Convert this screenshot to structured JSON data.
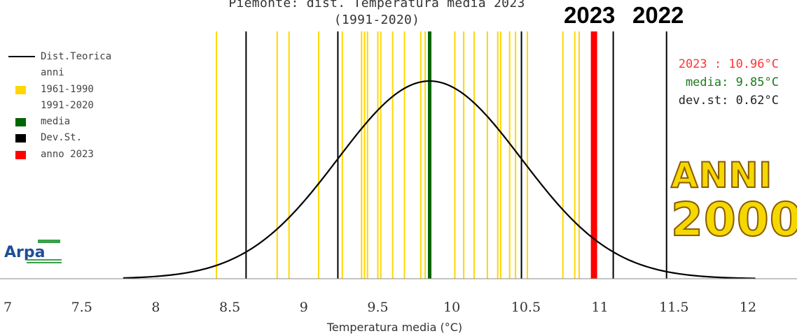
{
  "title": {
    "line1": "Piemonte: dist. Temperatura media 2023",
    "line2": "(1991-2020)"
  },
  "year_badges": [
    {
      "label": "2023",
      "color": "#ff0000"
    },
    {
      "label": "2022",
      "color": "#808080"
    }
  ],
  "legend": [
    {
      "label": "Dist.Teorica",
      "kind": "line",
      "color": "#000000"
    },
    {
      "label": "anni",
      "kind": "text"
    },
    {
      "label": "1961-1990",
      "kind": "swatch",
      "color": "#ffd700"
    },
    {
      "label": "1991-2020",
      "kind": "text"
    },
    {
      "label": "media",
      "kind": "swatch",
      "color": "#006400"
    },
    {
      "label": "Dev.St.",
      "kind": "swatch",
      "color": "#000000"
    },
    {
      "label": "anno 2023",
      "kind": "swatch",
      "color": "#ff0000"
    }
  ],
  "stats": {
    "year_value": "2023 : 10.96°C",
    "mean": "media: 9.85°C",
    "std": "dev.st: 0.62°C",
    "colors": {
      "year": "#ff3333",
      "mean": "#1a7a1a",
      "std": "#222222"
    }
  },
  "overlay": {
    "line1": "ANNI",
    "line2": "2000"
  },
  "logo": {
    "text": "Arpa"
  },
  "chart_data": {
    "type": "line",
    "xlabel": "Temperatura media (°C)",
    "ylabel": "",
    "xlim": [
      7,
      12.2
    ],
    "x_ticks": [
      "7",
      "7.5",
      "8",
      "8.5",
      "9",
      "9.5",
      "10",
      "10.5",
      "11",
      "11.5",
      "12"
    ],
    "distribution": {
      "mean": 9.85,
      "std": 0.62,
      "x_range": [
        7.78,
        12.05
      ]
    },
    "yearly_lines_1991_2020": [
      8.41,
      8.82,
      8.9,
      9.1,
      9.26,
      9.39,
      9.41,
      9.43,
      9.5,
      9.52,
      9.6,
      9.68,
      9.79,
      9.82,
      10.02,
      10.08,
      10.15,
      10.24,
      10.31,
      10.33,
      10.39,
      10.43,
      10.51,
      10.75,
      10.83,
      10.86
    ],
    "mean_line": 9.85,
    "std_lines": [
      8.61,
      9.23,
      10.47,
      11.09
    ],
    "year_2023": 10.96,
    "year_2022": 11.45,
    "colors": {
      "years": "#ffd700",
      "mean": "#006400",
      "std": "#000000",
      "year_2023": "#ff0000"
    }
  }
}
